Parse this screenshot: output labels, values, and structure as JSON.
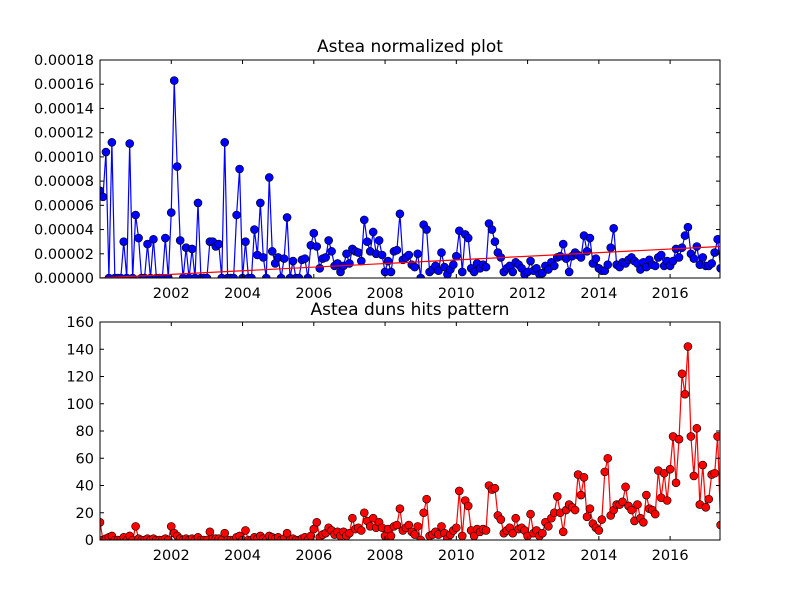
{
  "chart_data": [
    {
      "type": "line",
      "title": "Astea normalized plot",
      "xlabel": "",
      "ylabel": "",
      "xlim": [
        2000.0,
        2017.4
      ],
      "ylim": [
        0,
        0.00018
      ],
      "x_ticks": [
        2002,
        2004,
        2006,
        2008,
        2010,
        2012,
        2014,
        2016
      ],
      "x_tick_labels": [
        "2002",
        "2004",
        "2006",
        "2008",
        "2010",
        "2012",
        "2014",
        "2016"
      ],
      "y_ticks": [
        0,
        2e-05,
        4e-05,
        6e-05,
        8e-05,
        0.0001,
        0.00012,
        0.00014,
        0.00016,
        0.00018
      ],
      "y_tick_labels": [
        "0.00000",
        "0.00002",
        "0.00004",
        "0.00006",
        "0.00008",
        "0.00010",
        "0.00012",
        "0.00014",
        "0.00016",
        "0.00018"
      ],
      "grid": false,
      "series": [
        {
          "color": "#0000ff",
          "marker": "circle",
          "x_start": 2000.0,
          "step_months": 1,
          "values": [
            7.2e-05,
            6.7e-05,
            0.000104,
            0.0,
            0.000112,
            0.0,
            0.0,
            0.0,
            3e-05,
            0.0,
            0.000111,
            0.0,
            5.2e-05,
            3.3e-05,
            0.0,
            0.0,
            2.8e-05,
            0.0,
            3.2e-05,
            0.0,
            0.0,
            0.0,
            3.3e-05,
            0.0,
            5.4e-05,
            0.000163,
            9.2e-05,
            3.1e-05,
            0.0,
            2.5e-05,
            0.0,
            2.4e-05,
            0.0,
            6.2e-05,
            0.0,
            0.0,
            0.0,
            3e-05,
            3e-05,
            2.6e-05,
            2.8e-05,
            0.0,
            0.000112,
            0.0,
            0.0,
            0.0,
            5.2e-05,
            9e-05,
            0.0,
            3e-05,
            0.0,
            0.0,
            4e-05,
            1.9e-05,
            6.2e-05,
            1.7e-05,
            0.0,
            8.3e-05,
            2.2e-05,
            1.2e-05,
            1.7e-05,
            0.0,
            1.6e-05,
            5e-05,
            0.0,
            1.4e-05,
            0.0,
            0.0,
            1.5e-05,
            1.6e-05,
            0.0,
            2.7e-05,
            3.7e-05,
            2.6e-05,
            8e-06,
            1.6e-05,
            1.7e-05,
            3.1e-05,
            2.2e-05,
            1e-05,
            1.2e-05,
            5e-06,
            1e-05,
            2e-05,
            1.2e-05,
            2.4e-05,
            2.2e-05,
            2.1e-05,
            1.4e-05,
            4.8e-05,
            3e-05,
            2.2e-05,
            3.8e-05,
            2e-05,
            3.1e-05,
            1.9e-05,
            5e-06,
            1.4e-05,
            5e-06,
            2.2e-05,
            2.3e-05,
            5.3e-05,
            1.5e-05,
            1.7e-05,
            1.9e-05,
            1.1e-05,
            9e-06,
            2e-05,
            0.0,
            4.4e-05,
            4e-05,
            5e-06,
            7e-06,
            1e-05,
            6e-06,
            2.1e-05,
            9e-06,
            3e-06,
            7e-06,
            1.1e-05,
            1.8e-05,
            3.9e-05,
            5e-06,
            3.6e-05,
            3.3e-05,
            8e-06,
            5e-06,
            1.2e-05,
            8e-06,
            1.1e-05,
            9e-06,
            4.5e-05,
            4e-05,
            3e-05,
            2.1e-05,
            1.7e-05,
            5e-06,
            8e-06,
            1e-05,
            5e-06,
            1.3e-05,
            1.1e-05,
            8e-06,
            3e-06,
            5e-06,
            1.4e-05,
            6e-06,
            8e-06,
            3e-06,
            4e-06,
            1e-05,
            7e-06,
            1.3e-05,
            1e-05,
            1.7e-05,
            1.8e-05,
            2.8e-05,
            1.6e-05,
            5e-06,
            1.8e-05,
            2.1e-05,
            1.9e-05,
            1.7e-05,
            3.5e-05,
            2.2e-05,
            3.3e-05,
            1.2e-05,
            1.6e-05,
            8e-06,
            6e-06,
            6e-06,
            1.1e-05,
            2.5e-05,
            4.1e-05,
            1.1e-05,
            9e-06,
            1.3e-05,
            1.2e-05,
            1.5e-05,
            1.7e-05,
            1.4e-05,
            1.2e-05,
            7e-06,
            1.3e-05,
            9e-06,
            1.5e-05,
            1.1e-05,
            1e-05,
            1.7e-05,
            1.9e-05,
            1e-05,
            1.4e-05,
            1e-05,
            1.4e-05,
            2.4e-05,
            1.7e-05,
            2.5e-05,
            3.5e-05,
            4.2e-05,
            2e-05,
            1.6e-05,
            2.6e-05,
            1.1e-05,
            1.7e-05,
            1e-05,
            1e-05,
            1.2e-05,
            2.1e-05,
            3.2e-05,
            8e-06
          ]
        },
        {
          "color": "#ff0000",
          "marker": "none",
          "x": [
            2000.0,
            2017.4
          ],
          "values": [
            0.0,
            2.6e-05
          ]
        }
      ]
    },
    {
      "type": "line",
      "title": "Astea duns hits pattern",
      "xlabel": "",
      "ylabel": "",
      "xlim": [
        2000.0,
        2017.4
      ],
      "ylim": [
        0,
        160
      ],
      "x_ticks": [
        2002,
        2004,
        2006,
        2008,
        2010,
        2012,
        2014,
        2016
      ],
      "x_tick_labels": [
        "2002",
        "2004",
        "2006",
        "2008",
        "2010",
        "2012",
        "2014",
        "2016"
      ],
      "y_ticks": [
        0,
        20,
        40,
        60,
        80,
        100,
        120,
        140,
        160
      ],
      "y_tick_labels": [
        "0",
        "20",
        "40",
        "60",
        "80",
        "100",
        "120",
        "140",
        "160"
      ],
      "grid": false,
      "series": [
        {
          "color": "#ff0000",
          "marker": "circle",
          "x_start": 2000.0,
          "step_months": 1,
          "values": [
            13,
            0,
            1,
            2,
            3,
            0,
            0,
            0,
            2,
            0,
            3,
            0,
            10,
            1,
            0,
            0,
            1,
            0,
            1,
            0,
            0,
            0,
            1,
            0,
            10,
            5,
            3,
            1,
            0,
            1,
            0,
            1,
            0,
            2,
            0,
            0,
            0,
            6,
            1,
            1,
            1,
            0,
            5,
            0,
            0,
            0,
            2,
            3,
            0,
            7,
            0,
            0,
            2,
            1,
            3,
            1,
            0,
            3,
            2,
            1,
            2,
            0,
            1,
            5,
            0,
            1,
            0,
            0,
            1,
            2,
            0,
            3,
            8,
            13,
            2,
            4,
            5,
            9,
            7,
            4,
            6,
            3,
            6,
            3,
            5,
            16,
            8,
            9,
            7,
            20,
            14,
            10,
            16,
            9,
            13,
            9,
            3,
            8,
            3,
            10,
            11,
            23,
            7,
            9,
            11,
            6,
            4,
            10,
            0,
            20,
            30,
            3,
            4,
            6,
            4,
            10,
            5,
            1,
            4,
            7,
            9,
            36,
            3,
            29,
            25,
            7,
            3,
            8,
            6,
            8,
            7,
            40,
            37,
            38,
            18,
            15,
            5,
            7,
            9,
            5,
            16,
            8,
            9,
            7,
            3,
            19,
            5,
            7,
            3,
            5,
            13,
            10,
            16,
            20,
            32,
            20,
            6,
            22,
            26,
            24,
            22,
            48,
            33,
            46,
            17,
            23,
            12,
            9,
            7,
            15,
            50,
            60,
            18,
            22,
            26,
            26,
            28,
            39,
            25,
            22,
            14,
            26,
            16,
            13,
            33,
            23,
            22,
            19,
            51,
            31,
            49,
            29,
            52,
            76,
            42,
            74,
            122,
            107,
            142,
            76,
            47,
            82,
            26,
            55,
            24,
            30,
            48,
            49,
            76,
            11
          ]
        }
      ]
    }
  ]
}
